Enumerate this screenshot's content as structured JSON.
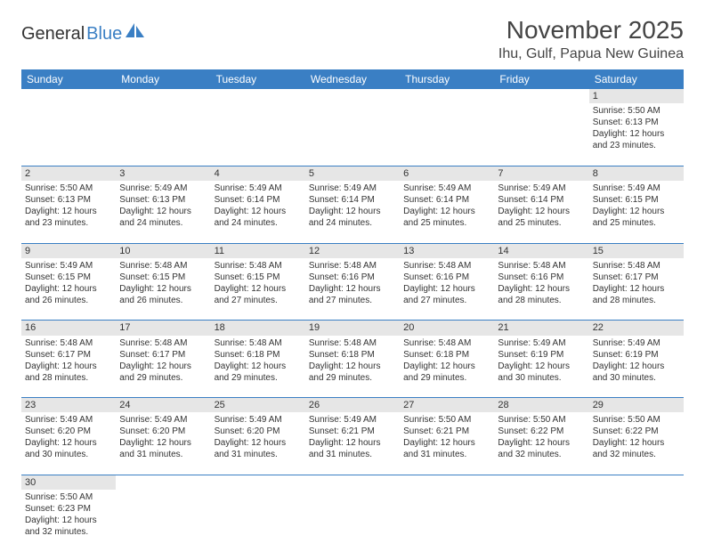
{
  "brand": {
    "part1": "General",
    "part2": "Blue"
  },
  "title": "November 2025",
  "location": "Ihu, Gulf, Papua New Guinea",
  "colors": {
    "accent": "#3a7fc4",
    "header_bg": "#3a7fc4",
    "header_text": "#ffffff",
    "daynum_bg": "#e6e6e6",
    "border": "#3a7fc4",
    "text": "#333333",
    "background": "#ffffff"
  },
  "typography": {
    "title_fontsize": 28,
    "location_fontsize": 16,
    "header_fontsize": 12,
    "cell_fontsize": 10,
    "daynum_fontsize": 11
  },
  "weekdays": [
    "Sunday",
    "Monday",
    "Tuesday",
    "Wednesday",
    "Thursday",
    "Friday",
    "Saturday"
  ],
  "weeks": [
    [
      null,
      null,
      null,
      null,
      null,
      null,
      {
        "day": "1",
        "sunrise": "Sunrise: 5:50 AM",
        "sunset": "Sunset: 6:13 PM",
        "daylight1": "Daylight: 12 hours",
        "daylight2": "and 23 minutes."
      }
    ],
    [
      {
        "day": "2",
        "sunrise": "Sunrise: 5:50 AM",
        "sunset": "Sunset: 6:13 PM",
        "daylight1": "Daylight: 12 hours",
        "daylight2": "and 23 minutes."
      },
      {
        "day": "3",
        "sunrise": "Sunrise: 5:49 AM",
        "sunset": "Sunset: 6:13 PM",
        "daylight1": "Daylight: 12 hours",
        "daylight2": "and 24 minutes."
      },
      {
        "day": "4",
        "sunrise": "Sunrise: 5:49 AM",
        "sunset": "Sunset: 6:14 PM",
        "daylight1": "Daylight: 12 hours",
        "daylight2": "and 24 minutes."
      },
      {
        "day": "5",
        "sunrise": "Sunrise: 5:49 AM",
        "sunset": "Sunset: 6:14 PM",
        "daylight1": "Daylight: 12 hours",
        "daylight2": "and 24 minutes."
      },
      {
        "day": "6",
        "sunrise": "Sunrise: 5:49 AM",
        "sunset": "Sunset: 6:14 PM",
        "daylight1": "Daylight: 12 hours",
        "daylight2": "and 25 minutes."
      },
      {
        "day": "7",
        "sunrise": "Sunrise: 5:49 AM",
        "sunset": "Sunset: 6:14 PM",
        "daylight1": "Daylight: 12 hours",
        "daylight2": "and 25 minutes."
      },
      {
        "day": "8",
        "sunrise": "Sunrise: 5:49 AM",
        "sunset": "Sunset: 6:15 PM",
        "daylight1": "Daylight: 12 hours",
        "daylight2": "and 25 minutes."
      }
    ],
    [
      {
        "day": "9",
        "sunrise": "Sunrise: 5:49 AM",
        "sunset": "Sunset: 6:15 PM",
        "daylight1": "Daylight: 12 hours",
        "daylight2": "and 26 minutes."
      },
      {
        "day": "10",
        "sunrise": "Sunrise: 5:48 AM",
        "sunset": "Sunset: 6:15 PM",
        "daylight1": "Daylight: 12 hours",
        "daylight2": "and 26 minutes."
      },
      {
        "day": "11",
        "sunrise": "Sunrise: 5:48 AM",
        "sunset": "Sunset: 6:15 PM",
        "daylight1": "Daylight: 12 hours",
        "daylight2": "and 27 minutes."
      },
      {
        "day": "12",
        "sunrise": "Sunrise: 5:48 AM",
        "sunset": "Sunset: 6:16 PM",
        "daylight1": "Daylight: 12 hours",
        "daylight2": "and 27 minutes."
      },
      {
        "day": "13",
        "sunrise": "Sunrise: 5:48 AM",
        "sunset": "Sunset: 6:16 PM",
        "daylight1": "Daylight: 12 hours",
        "daylight2": "and 27 minutes."
      },
      {
        "day": "14",
        "sunrise": "Sunrise: 5:48 AM",
        "sunset": "Sunset: 6:16 PM",
        "daylight1": "Daylight: 12 hours",
        "daylight2": "and 28 minutes."
      },
      {
        "day": "15",
        "sunrise": "Sunrise: 5:48 AM",
        "sunset": "Sunset: 6:17 PM",
        "daylight1": "Daylight: 12 hours",
        "daylight2": "and 28 minutes."
      }
    ],
    [
      {
        "day": "16",
        "sunrise": "Sunrise: 5:48 AM",
        "sunset": "Sunset: 6:17 PM",
        "daylight1": "Daylight: 12 hours",
        "daylight2": "and 28 minutes."
      },
      {
        "day": "17",
        "sunrise": "Sunrise: 5:48 AM",
        "sunset": "Sunset: 6:17 PM",
        "daylight1": "Daylight: 12 hours",
        "daylight2": "and 29 minutes."
      },
      {
        "day": "18",
        "sunrise": "Sunrise: 5:48 AM",
        "sunset": "Sunset: 6:18 PM",
        "daylight1": "Daylight: 12 hours",
        "daylight2": "and 29 minutes."
      },
      {
        "day": "19",
        "sunrise": "Sunrise: 5:48 AM",
        "sunset": "Sunset: 6:18 PM",
        "daylight1": "Daylight: 12 hours",
        "daylight2": "and 29 minutes."
      },
      {
        "day": "20",
        "sunrise": "Sunrise: 5:48 AM",
        "sunset": "Sunset: 6:18 PM",
        "daylight1": "Daylight: 12 hours",
        "daylight2": "and 29 minutes."
      },
      {
        "day": "21",
        "sunrise": "Sunrise: 5:49 AM",
        "sunset": "Sunset: 6:19 PM",
        "daylight1": "Daylight: 12 hours",
        "daylight2": "and 30 minutes."
      },
      {
        "day": "22",
        "sunrise": "Sunrise: 5:49 AM",
        "sunset": "Sunset: 6:19 PM",
        "daylight1": "Daylight: 12 hours",
        "daylight2": "and 30 minutes."
      }
    ],
    [
      {
        "day": "23",
        "sunrise": "Sunrise: 5:49 AM",
        "sunset": "Sunset: 6:20 PM",
        "daylight1": "Daylight: 12 hours",
        "daylight2": "and 30 minutes."
      },
      {
        "day": "24",
        "sunrise": "Sunrise: 5:49 AM",
        "sunset": "Sunset: 6:20 PM",
        "daylight1": "Daylight: 12 hours",
        "daylight2": "and 31 minutes."
      },
      {
        "day": "25",
        "sunrise": "Sunrise: 5:49 AM",
        "sunset": "Sunset: 6:20 PM",
        "daylight1": "Daylight: 12 hours",
        "daylight2": "and 31 minutes."
      },
      {
        "day": "26",
        "sunrise": "Sunrise: 5:49 AM",
        "sunset": "Sunset: 6:21 PM",
        "daylight1": "Daylight: 12 hours",
        "daylight2": "and 31 minutes."
      },
      {
        "day": "27",
        "sunrise": "Sunrise: 5:50 AM",
        "sunset": "Sunset: 6:21 PM",
        "daylight1": "Daylight: 12 hours",
        "daylight2": "and 31 minutes."
      },
      {
        "day": "28",
        "sunrise": "Sunrise: 5:50 AM",
        "sunset": "Sunset: 6:22 PM",
        "daylight1": "Daylight: 12 hours",
        "daylight2": "and 32 minutes."
      },
      {
        "day": "29",
        "sunrise": "Sunrise: 5:50 AM",
        "sunset": "Sunset: 6:22 PM",
        "daylight1": "Daylight: 12 hours",
        "daylight2": "and 32 minutes."
      }
    ],
    [
      {
        "day": "30",
        "sunrise": "Sunrise: 5:50 AM",
        "sunset": "Sunset: 6:23 PM",
        "daylight1": "Daylight: 12 hours",
        "daylight2": "and 32 minutes."
      },
      null,
      null,
      null,
      null,
      null,
      null
    ]
  ]
}
